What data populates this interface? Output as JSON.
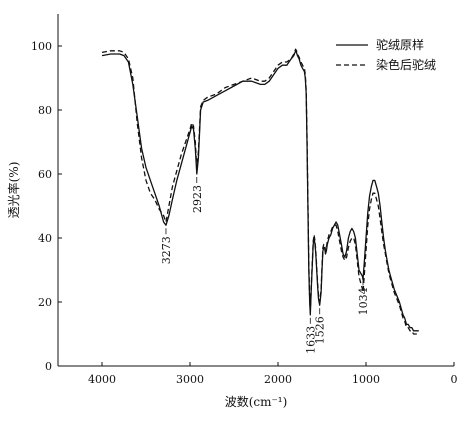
{
  "chart_data": {
    "type": "line",
    "xlabel": "波数(cm⁻¹)",
    "ylabel": "透光率(%)",
    "xlim": [
      4500,
      0
    ],
    "ylim": [
      0,
      110
    ],
    "x_ticks": [
      4000,
      3000,
      2000,
      1000,
      0
    ],
    "y_ticks": [
      0,
      20,
      40,
      60,
      80,
      100
    ],
    "grid": false,
    "legend_position": "top-right",
    "series": [
      {
        "name": "驼绒原样",
        "style": "solid",
        "color": "#111111",
        "x": [
          4000,
          3900,
          3800,
          3750,
          3700,
          3650,
          3600,
          3550,
          3500,
          3450,
          3400,
          3350,
          3300,
          3273,
          3240,
          3200,
          3150,
          3100,
          3050,
          3000,
          2980,
          2960,
          2940,
          2923,
          2905,
          2880,
          2850,
          2800,
          2700,
          2600,
          2500,
          2400,
          2300,
          2200,
          2150,
          2100,
          2000,
          1950,
          1900,
          1850,
          1820,
          1800,
          1790,
          1780,
          1760,
          1740,
          1720,
          1700,
          1690,
          1680,
          1670,
          1660,
          1650,
          1640,
          1633,
          1620,
          1600,
          1590,
          1580,
          1570,
          1560,
          1550,
          1540,
          1526,
          1510,
          1500,
          1490,
          1480,
          1470,
          1460,
          1450,
          1440,
          1420,
          1400,
          1380,
          1360,
          1340,
          1320,
          1300,
          1280,
          1260,
          1240,
          1220,
          1200,
          1180,
          1160,
          1140,
          1120,
          1100,
          1080,
          1060,
          1040,
          1034,
          1020,
          1000,
          980,
          960,
          940,
          920,
          900,
          880,
          860,
          840,
          820,
          800,
          780,
          760,
          740,
          720,
          700,
          680,
          650,
          620,
          600,
          580,
          560,
          540,
          520,
          500,
          480,
          460,
          440,
          420,
          400
        ],
        "y": [
          97,
          97.5,
          97.5,
          97,
          95,
          88,
          78,
          68,
          62,
          58,
          54,
          50,
          45,
          44,
          47,
          52,
          58,
          63,
          68,
          73,
          75,
          74,
          68,
          60,
          65,
          80,
          82.5,
          83,
          84.5,
          86,
          87.5,
          89,
          89,
          88,
          88,
          89,
          93,
          94,
          94,
          96,
          97,
          98.5,
          98,
          97,
          96,
          94,
          93,
          92,
          90,
          85,
          70,
          50,
          30,
          20,
          16,
          25,
          38,
          40,
          38,
          35,
          30,
          25,
          21,
          19,
          23,
          30,
          36,
          37,
          37,
          35,
          36,
          38,
          40,
          41,
          43,
          44,
          45,
          44,
          41,
          38,
          35,
          34,
          36,
          40,
          42,
          43,
          42,
          40,
          35,
          30,
          29,
          28,
          27,
          32,
          40,
          48,
          53,
          56,
          58,
          58,
          56,
          54,
          50,
          45,
          40,
          36,
          33,
          30,
          28,
          26,
          24,
          22,
          20,
          18,
          16,
          15,
          13,
          13,
          12,
          12,
          11,
          11,
          11,
          11
        ]
      },
      {
        "name": "染色后驼绒",
        "style": "dashed",
        "color": "#111111",
        "x": [
          4000,
          3900,
          3800,
          3750,
          3700,
          3650,
          3600,
          3550,
          3500,
          3450,
          3400,
          3350,
          3300,
          3273,
          3240,
          3200,
          3150,
          3100,
          3050,
          3000,
          2980,
          2960,
          2940,
          2923,
          2905,
          2880,
          2850,
          2800,
          2700,
          2600,
          2500,
          2400,
          2300,
          2200,
          2150,
          2100,
          2000,
          1950,
          1900,
          1850,
          1820,
          1800,
          1790,
          1780,
          1760,
          1740,
          1720,
          1700,
          1690,
          1680,
          1670,
          1660,
          1650,
          1640,
          1633,
          1620,
          1600,
          1590,
          1580,
          1570,
          1560,
          1550,
          1540,
          1526,
          1510,
          1500,
          1490,
          1480,
          1470,
          1460,
          1450,
          1440,
          1420,
          1400,
          1380,
          1360,
          1340,
          1320,
          1300,
          1280,
          1260,
          1240,
          1220,
          1200,
          1180,
          1160,
          1140,
          1120,
          1100,
          1080,
          1060,
          1040,
          1034,
          1020,
          1000,
          980,
          960,
          940,
          920,
          900,
          880,
          860,
          840,
          820,
          800,
          780,
          760,
          740,
          720,
          700,
          680,
          650,
          620,
          600,
          580,
          560,
          540,
          520,
          500,
          480,
          460,
          440,
          420,
          400
        ],
        "y": [
          98,
          98.5,
          98.5,
          98,
          96,
          90,
          76,
          65,
          58,
          54,
          52,
          49,
          47,
          45,
          50,
          56,
          61,
          66,
          70,
          74,
          76,
          75,
          70,
          62,
          67,
          81,
          83,
          84,
          85,
          87,
          88,
          89,
          90,
          89,
          89,
          90,
          94,
          95,
          95,
          96,
          97.5,
          99,
          98.5,
          97.5,
          96.5,
          95,
          94,
          93,
          91,
          86,
          72,
          52,
          32,
          21,
          17,
          26,
          39,
          41,
          39,
          36,
          31,
          26,
          22,
          20,
          24,
          31,
          37,
          38,
          38,
          36,
          37,
          39,
          41,
          42,
          43.5,
          44,
          44,
          42,
          39,
          36,
          34,
          33,
          34,
          37,
          39,
          40,
          40,
          38,
          33,
          28,
          26,
          24,
          23,
          28,
          36,
          44,
          49,
          52,
          54,
          54,
          52,
          50,
          46,
          42,
          38,
          35,
          32,
          29,
          27,
          25,
          23,
          21,
          19,
          17,
          15,
          14,
          12,
          12,
          11,
          11,
          10,
          10,
          10,
          10
        ]
      }
    ],
    "annotations": [
      {
        "label": "3273",
        "x": 3273,
        "y": 44
      },
      {
        "label": "2923",
        "x": 2923,
        "y": 60
      },
      {
        "label": "1633",
        "x": 1633,
        "y": 16
      },
      {
        "label": "1526",
        "x": 1526,
        "y": 19
      },
      {
        "label": "1034",
        "x": 1034,
        "y": 28
      }
    ]
  }
}
